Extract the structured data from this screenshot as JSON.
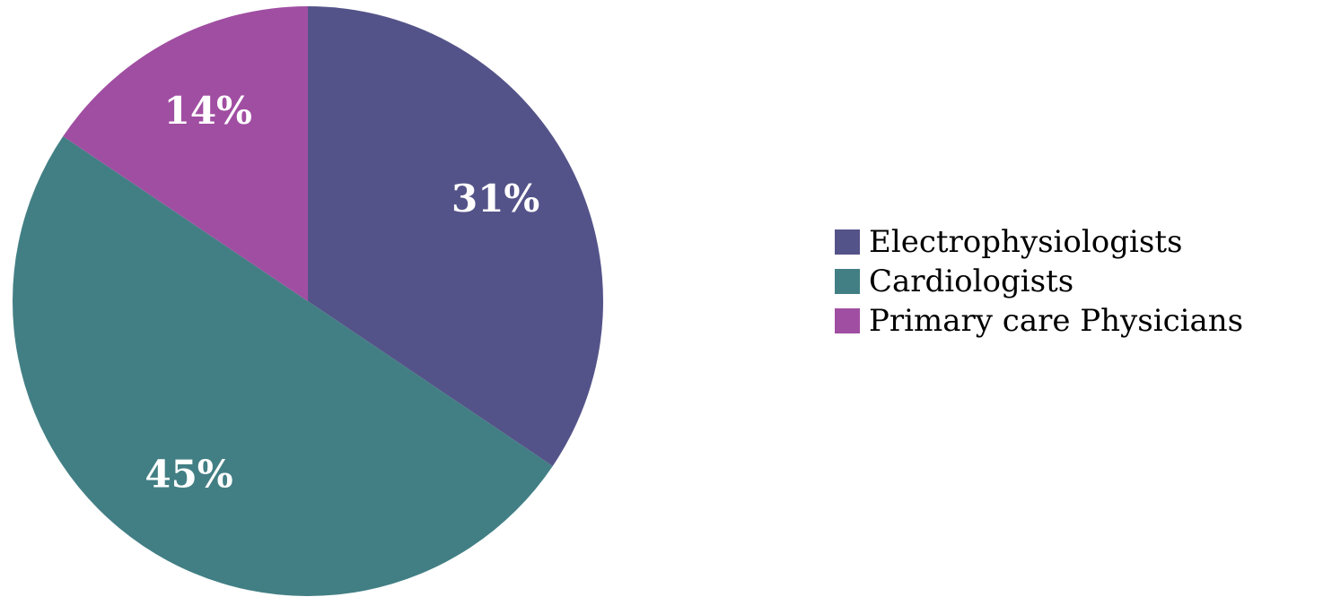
{
  "chart_data": {
    "type": "pie",
    "title": "",
    "start_angle_deg": 0,
    "direction": "clockwise",
    "legend_position": "right",
    "slices": [
      {
        "label": "Electrophysiologists",
        "value": 31,
        "display": "31%",
        "color": "#545389"
      },
      {
        "label": "Cardiologists",
        "value": 45,
        "display": "45%",
        "color": "#427f84"
      },
      {
        "label": "Primary care Physicians",
        "value": 14,
        "display": "14%",
        "color": "#a04ea2"
      }
    ]
  }
}
